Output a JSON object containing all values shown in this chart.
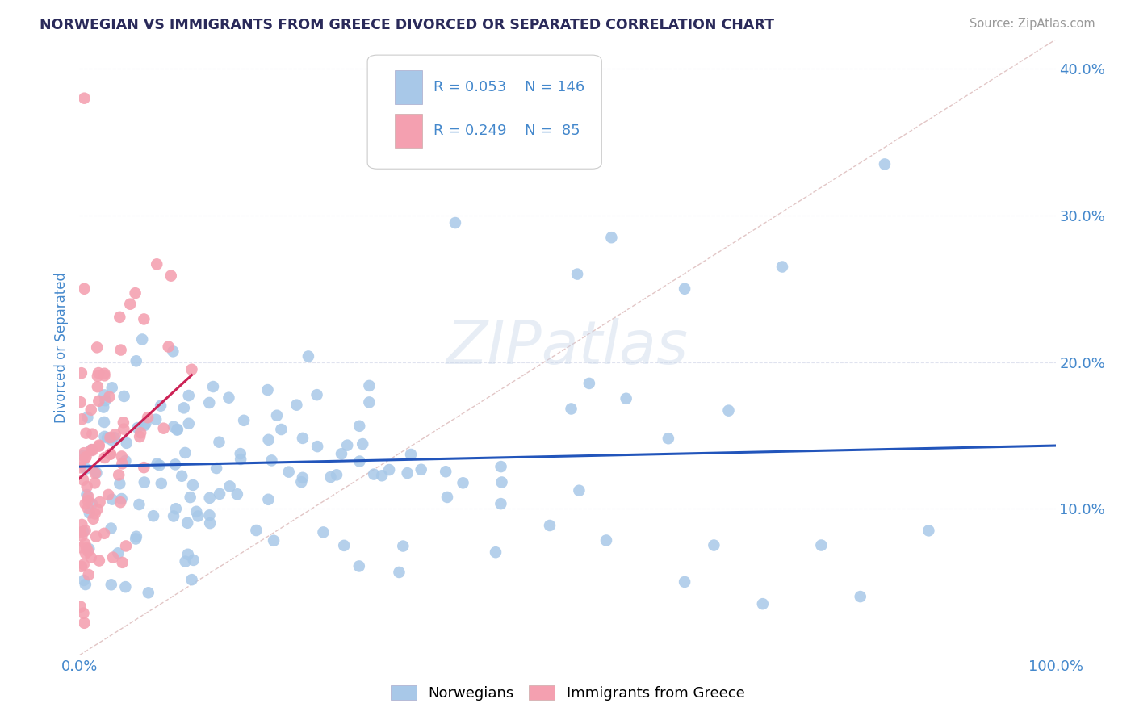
{
  "title": "NORWEGIAN VS IMMIGRANTS FROM GREECE DIVORCED OR SEPARATED CORRELATION CHART",
  "source_text": "Source: ZipAtlas.com",
  "ylabel": "Divorced or Separated",
  "xlabel": "",
  "xlim": [
    0.0,
    1.0
  ],
  "ylim": [
    0.0,
    0.42
  ],
  "x_ticks": [
    0.0,
    0.1,
    0.2,
    0.3,
    0.4,
    0.5,
    0.6,
    0.7,
    0.8,
    0.9,
    1.0
  ],
  "x_tick_labels": [
    "0.0%",
    "",
    "",
    "",
    "",
    "",
    "",
    "",
    "",
    "",
    "100.0%"
  ],
  "y_ticks": [
    0.0,
    0.1,
    0.2,
    0.3,
    0.4
  ],
  "y_tick_labels": [
    "",
    "10.0%",
    "20.0%",
    "30.0%",
    "40.0%"
  ],
  "legend_r1": "0.053",
  "legend_n1": "146",
  "legend_r2": "0.249",
  "legend_n2": " 85",
  "color_norwegian": "#a8c8e8",
  "color_greece": "#f4a0b0",
  "color_line_norwegian": "#2255bb",
  "color_line_greece": "#cc2255",
  "color_diag": "#ddbcbc",
  "watermark": "ZIPatlas",
  "title_color": "#2a2a5a",
  "tick_label_color": "#4488cc",
  "background_color": "#ffffff",
  "grid_color": "#dde0ee"
}
